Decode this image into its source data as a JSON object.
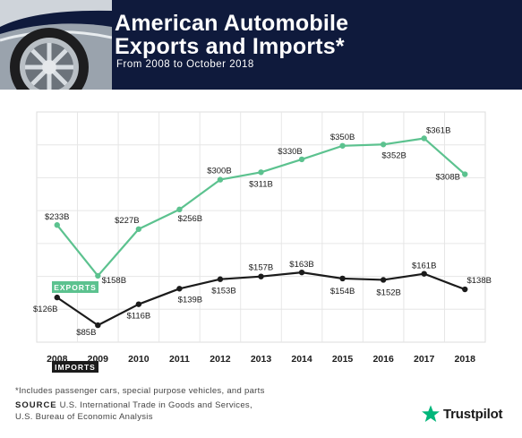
{
  "header": {
    "title_line1": "American Automobile",
    "title_line2": "Exports and Imports*",
    "subtitle": "From 2008 to October 2018"
  },
  "chart_data": {
    "type": "line",
    "x": [
      "2008",
      "2009",
      "2010",
      "2011",
      "2012",
      "2013",
      "2014",
      "2015",
      "2016",
      "2017",
      "2018"
    ],
    "ylim": [
      60,
      400
    ],
    "grid": true,
    "series": [
      {
        "name": "EXPORTS",
        "color": "#5cc28f",
        "values": [
          233,
          158,
          227,
          256,
          300,
          311,
          330,
          350,
          352,
          361,
          308
        ],
        "labels": [
          "$233B",
          "$158B",
          "$227B",
          "$256B",
          "$300B",
          "$311B",
          "$330B",
          "$350B",
          "$352B",
          "$361B",
          "$308B"
        ]
      },
      {
        "name": "IMPORTS",
        "color": "#1b1b1b",
        "values": [
          126,
          85,
          116,
          139,
          153,
          157,
          163,
          154,
          152,
          161,
          138
        ],
        "labels": [
          "$126B",
          "$85B",
          "$116B",
          "$139B",
          "$153B",
          "$157B",
          "$163B",
          "$154B",
          "$152B",
          "$161B",
          "$138B"
        ]
      }
    ]
  },
  "footer": {
    "footnote": "*Includes passenger cars, special purpose vehicles, and parts",
    "source_label": "SOURCE",
    "source_line1": "U.S. International Trade in Goods and Services,",
    "source_line2": "U.S. Bureau of Economic Analysis"
  },
  "brand": {
    "name": "Trustpilot",
    "icon": "star-icon",
    "color": "#00b67a"
  }
}
